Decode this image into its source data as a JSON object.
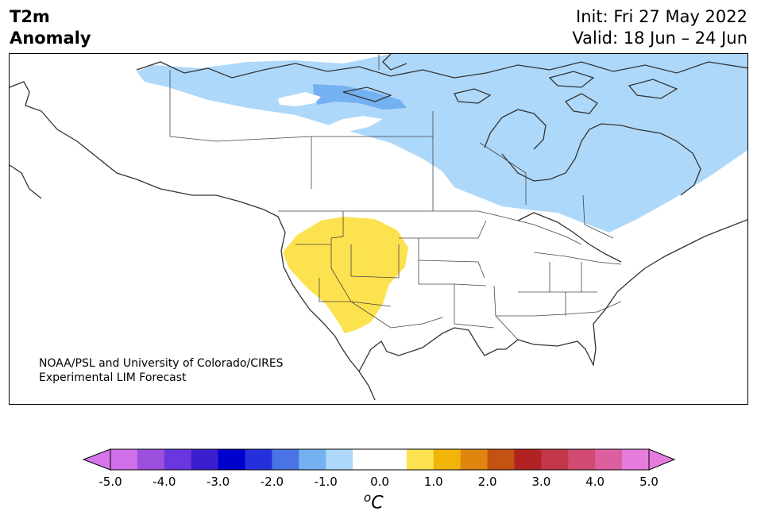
{
  "header": {
    "title_line1": "T2m",
    "title_line2": "Anomaly",
    "init": "Init: Fri 27 May 2022",
    "valid": "Valid: 18 Jun – 24 Jun"
  },
  "credit": {
    "line1": "NOAA/PSL and University of Colorado/CIRES",
    "line2": "Experimental LIM Forecast"
  },
  "map": {
    "variable": "2 m temperature anomaly",
    "colors": {
      "light_blue": "#add8fa",
      "mid_blue": "#74b1f1",
      "yellow": "#fde24f",
      "coast": "#333333"
    },
    "features": [
      {
        "name": "cool-anomaly-canada",
        "category": "-1.0 to -0.5"
      },
      {
        "name": "cool-anomaly-hudson-core",
        "category": "-1.5 to -1.0"
      },
      {
        "name": "warm-anomaly-southwest-us",
        "category": "0.5 to 1.0"
      }
    ]
  },
  "colorbar": {
    "unit": "C",
    "unit_sup": "o",
    "tick_labels": [
      "-5.0",
      "-4.0",
      "-3.0",
      "-2.0",
      "-1.0",
      "0.0",
      "1.0",
      "2.0",
      "3.0",
      "4.0",
      "5.0"
    ],
    "colors": [
      "#d16fe9",
      "#9b4fdc",
      "#6a36de",
      "#3a1fce",
      "#0000cd",
      "#2430dc",
      "#4a74e6",
      "#74b1f1",
      "#add8fa",
      "#ffffff",
      "#ffffff",
      "#fde24f",
      "#f1b408",
      "#df860f",
      "#c45212",
      "#b22222",
      "#c23649",
      "#d24b72",
      "#dc5fa0",
      "#e67ddc"
    ],
    "under_color": "#d675eb",
    "over_color": "#e67ddc"
  }
}
